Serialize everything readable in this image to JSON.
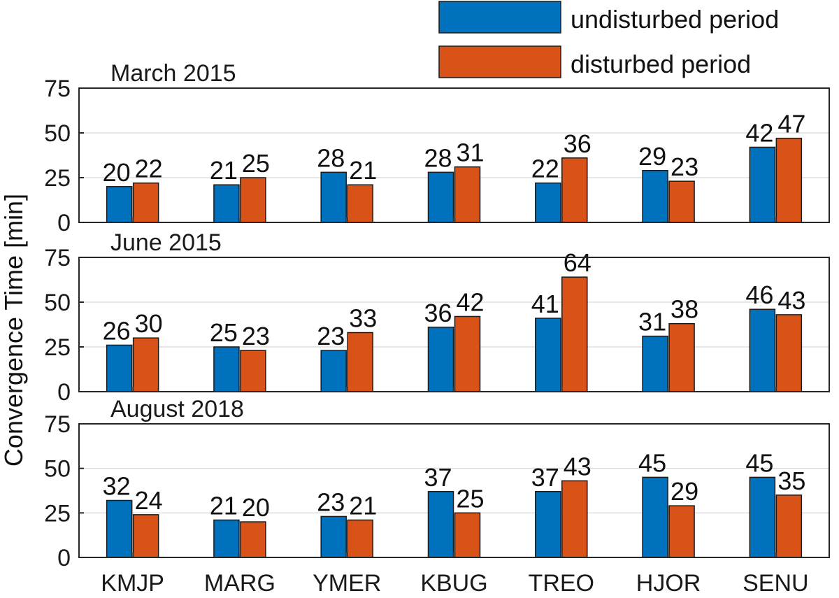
{
  "chart_data": {
    "type": "bar",
    "ylabel": "Convergence Time [min]",
    "categories": [
      "KMJP",
      "MARG",
      "YMER",
      "KBUG",
      "TREO",
      "HJOR",
      "SENU"
    ],
    "ylim": [
      0,
      75
    ],
    "yticks": [
      0,
      25,
      50,
      75
    ],
    "grid": true,
    "legend_position": "top-right",
    "legend": [
      {
        "name": "undisturbed period",
        "color": "#0072BD"
      },
      {
        "name": "disturbed period",
        "color": "#D95319"
      }
    ],
    "panels": [
      {
        "title": "March 2015",
        "series": [
          {
            "name": "undisturbed period",
            "values": [
              20,
              21,
              28,
              28,
              22,
              29,
              42
            ]
          },
          {
            "name": "disturbed period",
            "values": [
              22,
              25,
              21,
              31,
              36,
              23,
              47
            ]
          }
        ]
      },
      {
        "title": "June 2015",
        "series": [
          {
            "name": "undisturbed period",
            "values": [
              26,
              25,
              23,
              36,
              41,
              31,
              46
            ]
          },
          {
            "name": "disturbed period",
            "values": [
              30,
              23,
              33,
              42,
              64,
              38,
              43
            ]
          }
        ]
      },
      {
        "title": "August 2018",
        "series": [
          {
            "name": "undisturbed period",
            "values": [
              32,
              21,
              23,
              37,
              37,
              45,
              45
            ]
          },
          {
            "name": "disturbed period",
            "values": [
              24,
              20,
              21,
              25,
              43,
              29,
              35
            ]
          }
        ]
      }
    ]
  }
}
